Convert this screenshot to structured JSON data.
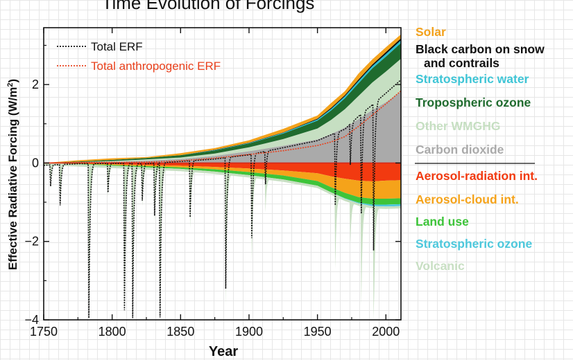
{
  "chart_data": {
    "type": "area",
    "title": "Time Evolution of Forcings",
    "xlabel": "Year",
    "ylabel": "Effective Radiative Forcing (W/m²)",
    "xlim": [
      1750,
      2011
    ],
    "ylim": [
      -4.0,
      3.45
    ],
    "xticks": [
      1750,
      1800,
      1850,
      1900,
      1950,
      2000
    ],
    "yticks": [
      -4,
      -2,
      0,
      2
    ],
    "grid": false,
    "legend_placement": "right",
    "x": [
      1750,
      1775,
      1800,
      1825,
      1850,
      1875,
      1900,
      1925,
      1950,
      1960,
      1970,
      1980,
      1990,
      2000,
      2011
    ],
    "positive_series": [
      {
        "name": "Carbon dioxide",
        "color": "#aaaaaa",
        "values": [
          0,
          0.01,
          0.03,
          0.06,
          0.1,
          0.18,
          0.3,
          0.44,
          0.6,
          0.74,
          0.9,
          1.12,
          1.35,
          1.55,
          1.82
        ]
      },
      {
        "name": "Other WMGHG",
        "color": "#c6dfc2",
        "values": [
          0,
          0.01,
          0.02,
          0.03,
          0.04,
          0.06,
          0.1,
          0.17,
          0.28,
          0.36,
          0.47,
          0.59,
          0.7,
          0.78,
          0.84
        ]
      },
      {
        "name": "Tropospheric ozone",
        "color": "#1f6b2e",
        "values": [
          0,
          0.02,
          0.03,
          0.04,
          0.06,
          0.08,
          0.1,
          0.14,
          0.2,
          0.24,
          0.28,
          0.32,
          0.36,
          0.38,
          0.4
        ]
      },
      {
        "name": "Stratospheric water",
        "color": "#2bbfd1",
        "values": [
          0,
          0.0,
          0.0,
          0.0,
          0.0,
          0.01,
          0.01,
          0.02,
          0.03,
          0.04,
          0.05,
          0.06,
          0.06,
          0.07,
          0.07
        ]
      },
      {
        "name": "Black carbon on snow and contrails",
        "color": "#111111",
        "values": [
          0,
          0.0,
          0.0,
          0.0,
          0.0,
          0.01,
          0.01,
          0.01,
          0.02,
          0.03,
          0.03,
          0.04,
          0.04,
          0.05,
          0.05
        ]
      },
      {
        "name": "Solar",
        "color": "#f3a21c",
        "values": [
          0,
          0.03,
          0.04,
          0.02,
          0.05,
          0.04,
          0.06,
          0.09,
          0.08,
          0.12,
          0.1,
          0.15,
          0.13,
          0.12,
          0.1
        ]
      }
    ],
    "negative_series": [
      {
        "name": "Aerosol-radiation int.",
        "color": "#f23a10",
        "values": [
          0,
          -0.01,
          -0.03,
          -0.05,
          -0.07,
          -0.1,
          -0.14,
          -0.19,
          -0.26,
          -0.34,
          -0.4,
          -0.45,
          -0.47,
          -0.45,
          -0.44
        ]
      },
      {
        "name": "Aerosol-cloud int.",
        "color": "#f5a31a",
        "values": [
          0,
          -0.01,
          -0.02,
          -0.03,
          -0.04,
          -0.06,
          -0.09,
          -0.13,
          -0.2,
          -0.28,
          -0.36,
          -0.42,
          -0.44,
          -0.46,
          -0.46
        ]
      },
      {
        "name": "Land use",
        "color": "#3ec43a",
        "values": [
          0,
          -0.01,
          -0.02,
          -0.03,
          -0.04,
          -0.06,
          -0.08,
          -0.1,
          -0.12,
          -0.13,
          -0.14,
          -0.14,
          -0.15,
          -0.15,
          -0.15
        ]
      },
      {
        "name": "Stratospheric ozone",
        "color": "#4dc8dc",
        "values": [
          0,
          0,
          0,
          0,
          0,
          0,
          0,
          0,
          0,
          0,
          -0.01,
          -0.02,
          -0.04,
          -0.05,
          -0.05
        ]
      }
    ],
    "volcanic": {
      "name": "Volcanic",
      "color": "#c8dfc3",
      "baseline": -0.06,
      "eruptions": [
        {
          "year": 1755,
          "value": -0.6
        },
        {
          "year": 1762,
          "value": -1.1
        },
        {
          "year": 1783,
          "value": -4.0
        },
        {
          "year": 1797,
          "value": -0.8
        },
        {
          "year": 1809,
          "value": -3.8
        },
        {
          "year": 1815,
          "value": -4.0
        },
        {
          "year": 1822,
          "value": -1.0
        },
        {
          "year": 1831,
          "value": -1.4
        },
        {
          "year": 1835,
          "value": -4.0
        },
        {
          "year": 1857,
          "value": -1.5
        },
        {
          "year": 1883,
          "value": -3.4
        },
        {
          "year": 1902,
          "value": -2.2
        },
        {
          "year": 1912,
          "value": -0.9
        },
        {
          "year": 1963,
          "value": -1.9
        },
        {
          "year": 1974,
          "value": -1.1
        },
        {
          "year": 1982,
          "value": -2.6
        },
        {
          "year": 1991,
          "value": -3.8
        }
      ]
    },
    "lines": [
      {
        "name": "Total ERF",
        "style": "dotted",
        "color": "#111111"
      },
      {
        "name": "Total anthropogenic ERF",
        "style": "dotted",
        "color": "#e8401c"
      }
    ],
    "zero_line_color": "#d42a1a"
  },
  "legend": {
    "positive": [
      {
        "label": "Solar",
        "color": "#f3a21c"
      },
      {
        "label": "Black carbon on snow",
        "color": "#111111"
      },
      {
        "label": "and contrails",
        "color": "#111111"
      },
      {
        "label": "Stratospheric water",
        "color": "#3ec5d6"
      },
      {
        "label": "Tropospheric ozone",
        "color": "#1f6b2e"
      },
      {
        "label": "Other WMGHG",
        "color": "#c6dfc2"
      },
      {
        "label": "Carbon dioxide",
        "color": "#aaaaaa"
      }
    ],
    "negative": [
      {
        "label": "Aerosol-radiation int.",
        "color": "#f23a10"
      },
      {
        "label": "Aerosol-cloud int.",
        "color": "#f5a31a"
      },
      {
        "label": "Land use",
        "color": "#3ec43a"
      },
      {
        "label": "Stratospheric ozone",
        "color": "#4dc8dc"
      },
      {
        "label": "Volcanic",
        "color": "#c8dfc3"
      }
    ]
  }
}
